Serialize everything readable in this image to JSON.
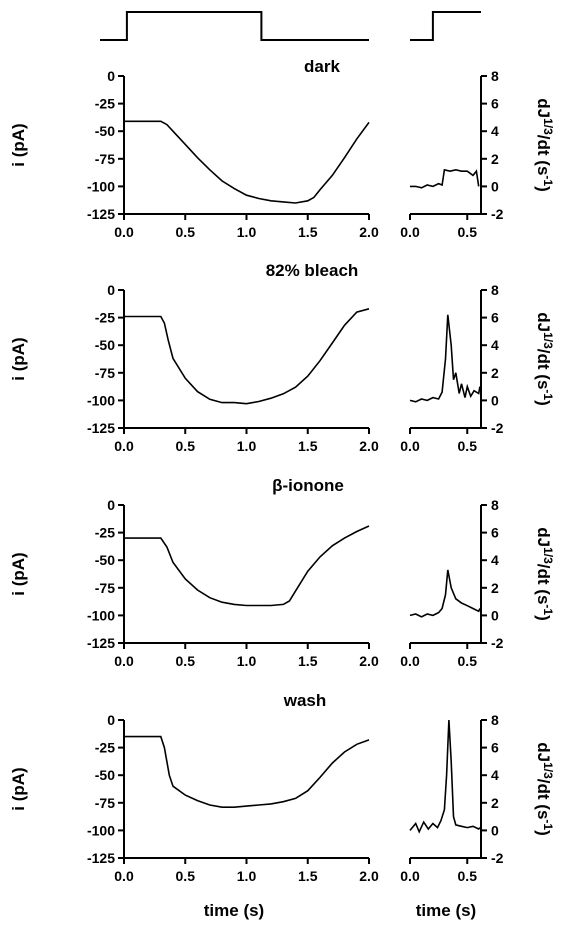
{
  "chart_data": {
    "type": "line",
    "x_axis_label": "time (s)",
    "left_ylabel": "i (pA)",
    "right_ylabel_parts": {
      "main": "dJ",
      "sup": "1/3",
      "post": "/dt  (s",
      "unit_sup": "-1",
      "close": ")"
    },
    "left_xticks": [
      "0.0",
      "0.5",
      "1.0",
      "1.5",
      "2.0"
    ],
    "right_xticks": [
      "0.0",
      "0.5"
    ],
    "left_yticks": [
      "0",
      "-25",
      "-50",
      "-75",
      "-100",
      "-125"
    ],
    "right_yticks": [
      "8",
      "6",
      "4",
      "2",
      "0",
      "-2"
    ],
    "xlim_left": [
      0,
      2
    ],
    "xlim_right": [
      0,
      0.62
    ],
    "ylim_left": [
      -125,
      0
    ],
    "ylim_right": [
      -2,
      8
    ],
    "stimulus_left": [
      [
        0,
        0
      ],
      [
        0.2,
        0
      ],
      [
        0.2,
        1
      ],
      [
        1.2,
        1
      ],
      [
        1.2,
        0
      ],
      [
        2.0,
        0
      ]
    ],
    "stimulus_right": [
      [
        0,
        0
      ],
      [
        0.2,
        0
      ],
      [
        0.2,
        1
      ],
      [
        0.62,
        1
      ]
    ],
    "panels": [
      {
        "title": "dark",
        "current": [
          [
            0,
            -41
          ],
          [
            0.1,
            -41
          ],
          [
            0.2,
            -41
          ],
          [
            0.3,
            -41
          ],
          [
            0.35,
            -44
          ],
          [
            0.4,
            -50
          ],
          [
            0.5,
            -62
          ],
          [
            0.6,
            -74
          ],
          [
            0.7,
            -85
          ],
          [
            0.8,
            -95
          ],
          [
            0.9,
            -102
          ],
          [
            1.0,
            -108
          ],
          [
            1.1,
            -111
          ],
          [
            1.2,
            -113
          ],
          [
            1.3,
            -114
          ],
          [
            1.4,
            -115
          ],
          [
            1.5,
            -113
          ],
          [
            1.55,
            -110
          ],
          [
            1.6,
            -103
          ],
          [
            1.7,
            -90
          ],
          [
            1.8,
            -74
          ],
          [
            1.9,
            -57
          ],
          [
            2.0,
            -42
          ]
        ],
        "derivative": [
          [
            0,
            0
          ],
          [
            0.05,
            0
          ],
          [
            0.1,
            -0.1
          ],
          [
            0.15,
            0.1
          ],
          [
            0.2,
            0
          ],
          [
            0.25,
            0.2
          ],
          [
            0.28,
            0.1
          ],
          [
            0.3,
            1.2
          ],
          [
            0.35,
            1.1
          ],
          [
            0.4,
            1.2
          ],
          [
            0.45,
            1.1
          ],
          [
            0.5,
            1.1
          ],
          [
            0.55,
            0.8
          ],
          [
            0.58,
            1.1
          ],
          [
            0.6,
            0
          ]
        ]
      },
      {
        "title": "82% bleach",
        "current": [
          [
            0,
            -24
          ],
          [
            0.3,
            -24
          ],
          [
            0.33,
            -30
          ],
          [
            0.36,
            -45
          ],
          [
            0.4,
            -62
          ],
          [
            0.5,
            -80
          ],
          [
            0.6,
            -92
          ],
          [
            0.7,
            -99
          ],
          [
            0.8,
            -102
          ],
          [
            0.9,
            -102
          ],
          [
            1.0,
            -103
          ],
          [
            1.1,
            -101
          ],
          [
            1.2,
            -98
          ],
          [
            1.3,
            -94
          ],
          [
            1.4,
            -88
          ],
          [
            1.5,
            -78
          ],
          [
            1.6,
            -64
          ],
          [
            1.7,
            -48
          ],
          [
            1.8,
            -32
          ],
          [
            1.9,
            -20
          ],
          [
            2.0,
            -17
          ]
        ],
        "derivative": [
          [
            0,
            0
          ],
          [
            0.05,
            -0.1
          ],
          [
            0.1,
            0.1
          ],
          [
            0.15,
            0
          ],
          [
            0.2,
            0.2
          ],
          [
            0.25,
            0.1
          ],
          [
            0.28,
            0.6
          ],
          [
            0.31,
            3.0
          ],
          [
            0.33,
            6.2
          ],
          [
            0.36,
            4.0
          ],
          [
            0.38,
            1.5
          ],
          [
            0.4,
            2.0
          ],
          [
            0.43,
            0.5
          ],
          [
            0.45,
            1.2
          ],
          [
            0.48,
            0.2
          ],
          [
            0.5,
            1.0
          ],
          [
            0.53,
            0.3
          ],
          [
            0.56,
            0.7
          ],
          [
            0.6,
            0.5
          ],
          [
            0.61,
            1.0
          ]
        ]
      },
      {
        "title": "β-ionone",
        "current": [
          [
            0,
            -30
          ],
          [
            0.3,
            -30
          ],
          [
            0.35,
            -38
          ],
          [
            0.4,
            -52
          ],
          [
            0.5,
            -67
          ],
          [
            0.6,
            -77
          ],
          [
            0.7,
            -84
          ],
          [
            0.8,
            -88
          ],
          [
            0.9,
            -90
          ],
          [
            1.0,
            -91
          ],
          [
            1.1,
            -91
          ],
          [
            1.2,
            -91
          ],
          [
            1.3,
            -90
          ],
          [
            1.35,
            -87
          ],
          [
            1.4,
            -78
          ],
          [
            1.5,
            -60
          ],
          [
            1.6,
            -47
          ],
          [
            1.7,
            -37
          ],
          [
            1.8,
            -30
          ],
          [
            1.9,
            -24
          ],
          [
            2.0,
            -19
          ]
        ],
        "derivative": [
          [
            0,
            0
          ],
          [
            0.05,
            0.1
          ],
          [
            0.1,
            -0.1
          ],
          [
            0.15,
            0.1
          ],
          [
            0.2,
            0
          ],
          [
            0.25,
            0.2
          ],
          [
            0.28,
            0.5
          ],
          [
            0.31,
            1.5
          ],
          [
            0.33,
            3.3
          ],
          [
            0.36,
            2.0
          ],
          [
            0.4,
            1.2
          ],
          [
            0.45,
            0.9
          ],
          [
            0.5,
            0.7
          ],
          [
            0.55,
            0.5
          ],
          [
            0.6,
            0.3
          ],
          [
            0.61,
            0.5
          ]
        ]
      },
      {
        "title": "wash",
        "current": [
          [
            0,
            -15
          ],
          [
            0.3,
            -15
          ],
          [
            0.33,
            -25
          ],
          [
            0.37,
            -50
          ],
          [
            0.4,
            -60
          ],
          [
            0.5,
            -68
          ],
          [
            0.6,
            -73
          ],
          [
            0.7,
            -77
          ],
          [
            0.8,
            -79
          ],
          [
            0.9,
            -79
          ],
          [
            1.0,
            -78
          ],
          [
            1.1,
            -77
          ],
          [
            1.2,
            -76
          ],
          [
            1.3,
            -74
          ],
          [
            1.4,
            -71
          ],
          [
            1.5,
            -64
          ],
          [
            1.6,
            -52
          ],
          [
            1.7,
            -39
          ],
          [
            1.8,
            -29
          ],
          [
            1.9,
            -22
          ],
          [
            2.0,
            -18
          ]
        ],
        "derivative": [
          [
            0,
            0
          ],
          [
            0.05,
            0.5
          ],
          [
            0.08,
            -0.1
          ],
          [
            0.12,
            0.6
          ],
          [
            0.16,
            0.1
          ],
          [
            0.2,
            0.5
          ],
          [
            0.24,
            0.2
          ],
          [
            0.27,
            0.7
          ],
          [
            0.3,
            1.5
          ],
          [
            0.32,
            4.0
          ],
          [
            0.34,
            8.0
          ],
          [
            0.36,
            5.0
          ],
          [
            0.38,
            1.0
          ],
          [
            0.4,
            0.4
          ],
          [
            0.45,
            0.3
          ],
          [
            0.5,
            0.2
          ],
          [
            0.55,
            0.3
          ],
          [
            0.6,
            0.1
          ],
          [
            0.61,
            0.2
          ]
        ]
      }
    ]
  }
}
